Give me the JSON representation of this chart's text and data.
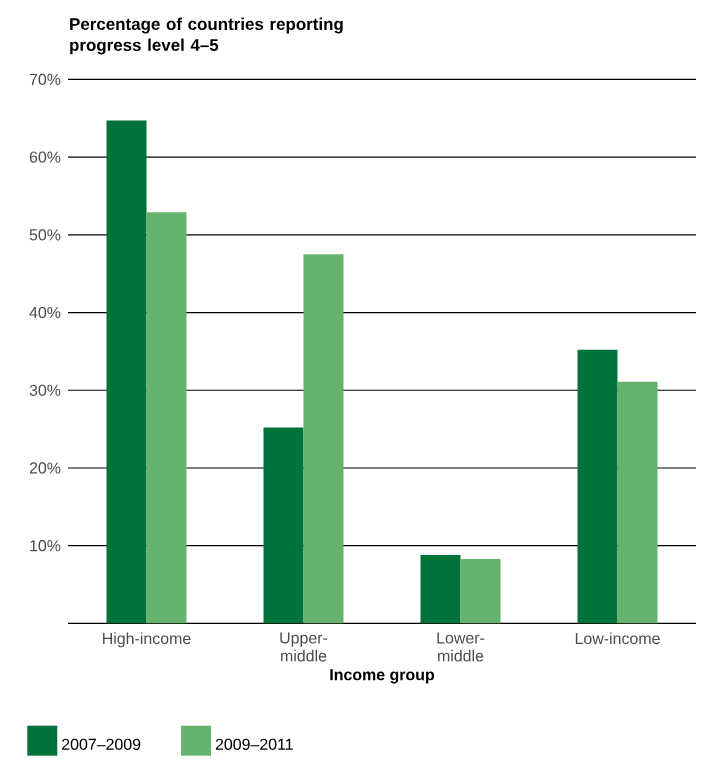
{
  "chart_data": {
    "type": "bar",
    "title": "Percentage of countries reporting progress level 4–5",
    "xlabel": "Income group",
    "categories": [
      "High-income",
      "Upper-middle",
      "Lower-middle",
      "Low-income"
    ],
    "series": [
      {
        "name": "2007–2009",
        "color": "#00733a",
        "values": [
          64.7,
          25.2,
          8.8,
          35.2
        ]
      },
      {
        "name": "2009–2011",
        "color": "#66b36e",
        "values": [
          52.9,
          47.5,
          8.3,
          31.1
        ]
      }
    ],
    "ylim": [
      0,
      70
    ],
    "yticks": [
      {
        "value": 0,
        "label": null
      },
      {
        "value": 10,
        "label": "10%"
      },
      {
        "value": 20,
        "label": "20%"
      },
      {
        "value": 30,
        "label": "30%"
      },
      {
        "value": 40,
        "label": "40%"
      },
      {
        "value": 50,
        "label": "50%"
      },
      {
        "value": 60,
        "label": "60%"
      },
      {
        "value": 70,
        "label": "70%"
      }
    ],
    "grid": "y",
    "legend": "bottom left"
  }
}
